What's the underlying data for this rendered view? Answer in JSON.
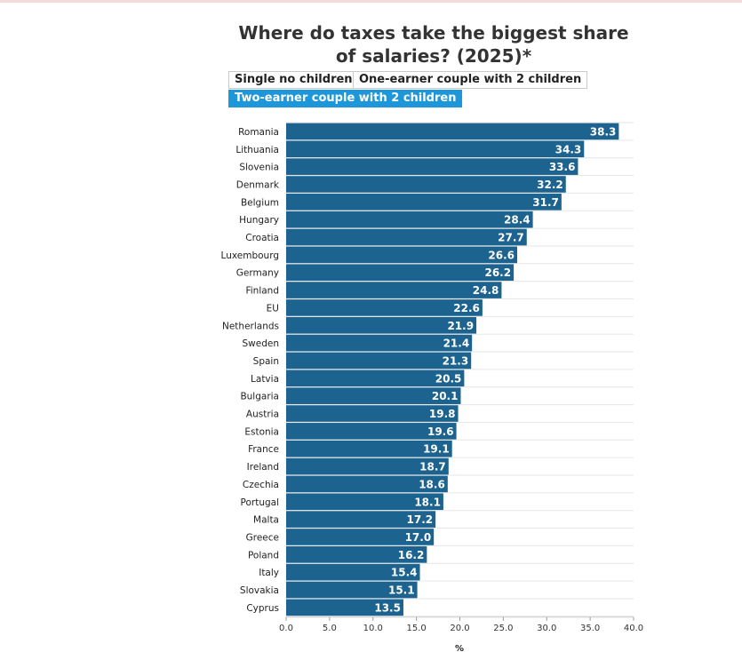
{
  "title": "Where do taxes take the biggest share of salaries? (2025)*",
  "tabs": [
    {
      "label": "Single no children",
      "active": false
    },
    {
      "label": "One-earner couple with 2 children",
      "active": false
    },
    {
      "label": "Two-earner couple with 2 children",
      "active": true
    }
  ],
  "colors": {
    "bar": "#1d638f",
    "active_tab": "#1d97d9"
  },
  "chart_data": {
    "type": "bar",
    "orientation": "horizontal",
    "categories": [
      "Romania",
      "Lithuania",
      "Slovenia",
      "Denmark",
      "Belgium",
      "Hungary",
      "Croatia",
      "Luxembourg",
      "Germany",
      "Finland",
      "EU",
      "Netherlands",
      "Sweden",
      "Spain",
      "Latvia",
      "Bulgaria",
      "Austria",
      "Estonia",
      "France",
      "Ireland",
      "Czechia",
      "Portugal",
      "Malta",
      "Greece",
      "Poland",
      "Italy",
      "Slovakia",
      "Cyprus"
    ],
    "values": [
      38.3,
      34.3,
      33.6,
      32.2,
      31.7,
      28.4,
      27.7,
      26.6,
      26.2,
      24.8,
      22.6,
      21.9,
      21.4,
      21.3,
      20.5,
      20.1,
      19.8,
      19.6,
      19.1,
      18.7,
      18.6,
      18.1,
      17.2,
      17.0,
      16.2,
      15.4,
      15.1,
      13.5
    ],
    "value_labels": [
      "38.3",
      "34.3",
      "33.6",
      "32.2",
      "31.7",
      "28.4",
      "27.7",
      "26.6",
      "26.2",
      "24.8",
      "22.6",
      "21.9",
      "21.4",
      "21.3",
      "20.5",
      "20.1",
      "19.8",
      "19.6",
      "19.1",
      "18.7",
      "18.6",
      "18.1",
      "17.2",
      "17.0",
      "16.2",
      "15.4",
      "15.1",
      "13.5"
    ],
    "xlim": [
      0,
      40
    ],
    "xticks": [
      "0.0",
      "5.0",
      "10.0",
      "15.0",
      "20.0",
      "25.0",
      "30.0",
      "35.0",
      "40.0"
    ],
    "xlabel": "%",
    "grid": true
  }
}
